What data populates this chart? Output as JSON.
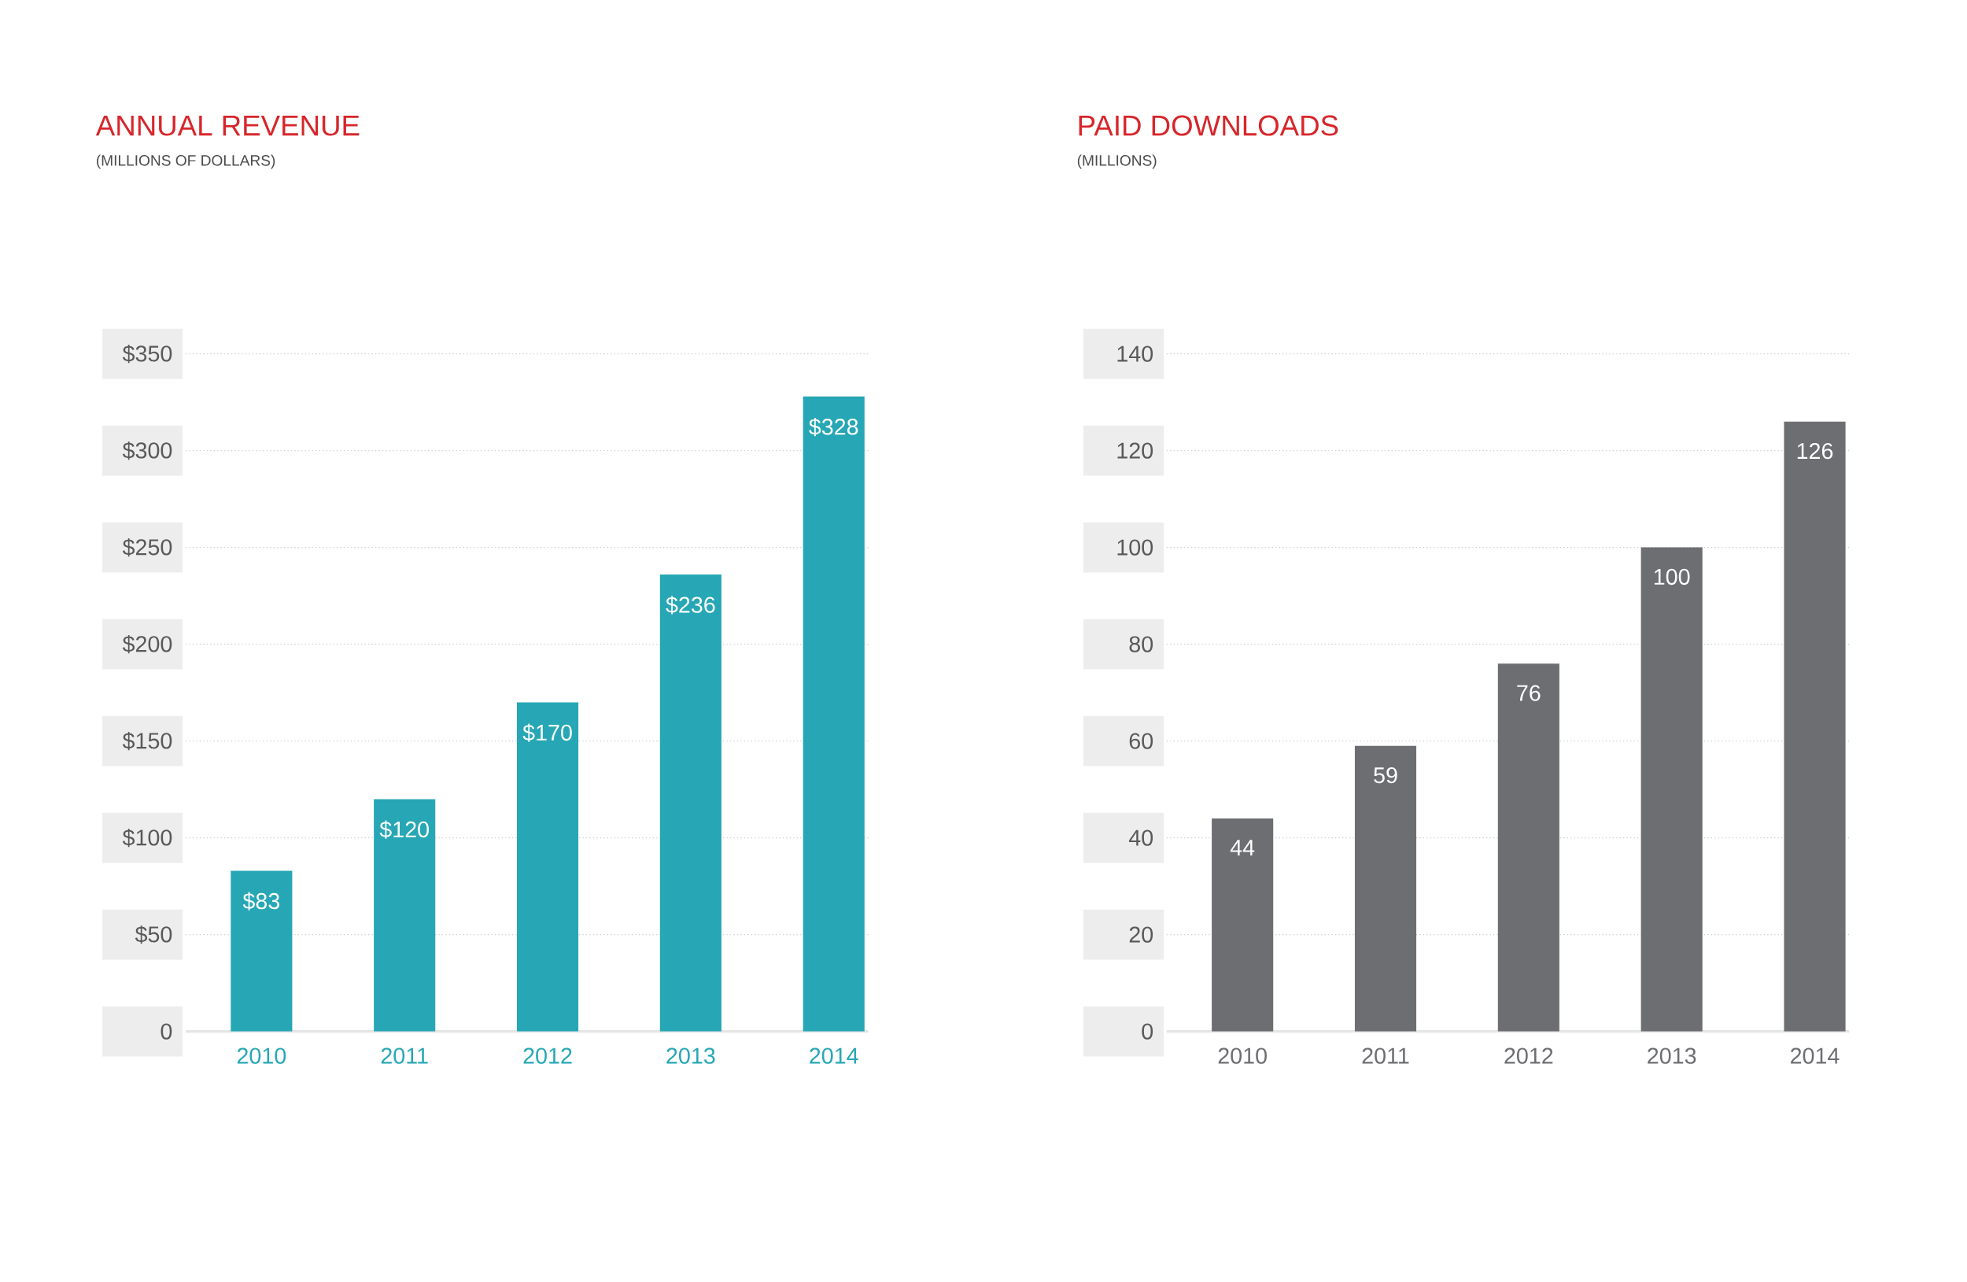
{
  "chart_data": [
    {
      "type": "bar",
      "title": "ANNUAL REVENUE",
      "subtitle": "(MILLIONS OF DOLLARS)",
      "categories": [
        "2010",
        "2011",
        "2012",
        "2013",
        "2014"
      ],
      "values": [
        83,
        120,
        170,
        236,
        328
      ],
      "value_labels": [
        "$83",
        "$120",
        "$170",
        "$236",
        "$328"
      ],
      "color": "#27a7b5",
      "ylim": [
        0,
        350
      ],
      "yticks": [
        0,
        {
          "value": 50,
          "label": "$50"
        },
        {
          "value": 100,
          "label": "$100"
        },
        {
          "value": 150,
          "label": "$150"
        },
        {
          "value": 200,
          "label": "$200"
        },
        {
          "value": 250,
          "label": "$250"
        },
        {
          "value": 300,
          "label": "$300"
        },
        {
          "value": 350,
          "label": "$350"
        }
      ],
      "grid": "y"
    },
    {
      "type": "bar",
      "title": "PAID DOWNLOADS",
      "subtitle": "(MILLIONS)",
      "categories": [
        "2010",
        "2011",
        "2012",
        "2013",
        "2014"
      ],
      "values": [
        44,
        59,
        76,
        100,
        126
      ],
      "data_labels": true,
      "color": "#6d6e71",
      "ylim": [
        0,
        140
      ],
      "yticks": [
        0,
        20,
        40,
        60,
        80,
        100,
        120,
        140
      ],
      "grid": "y"
    }
  ]
}
